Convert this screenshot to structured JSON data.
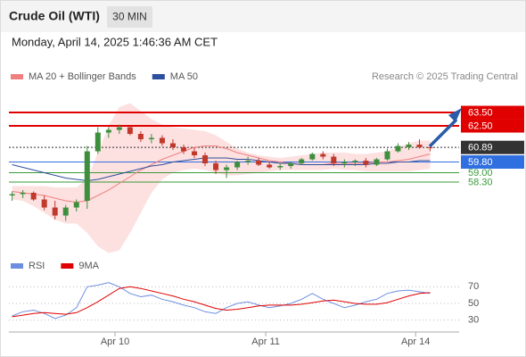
{
  "header": {
    "title": "Crude Oil (WTI)",
    "interval": "30 MIN",
    "datetime": "Monday, April 14, 2025 1:46:36 AM CET"
  },
  "chart_data": [
    {
      "type": "candlestick",
      "credit": "Research © 2025 Trading Central",
      "up_color": "#3d8f3d",
      "down_color": "#c0392b",
      "xlim": [
        -0.3,
        41.7
      ],
      "ylim": [
        52.9,
        65.57
      ],
      "open": [
        57.3,
        57.4,
        57.5,
        57.0,
        56.4,
        55.8,
        56.4,
        56.9,
        60.6,
        62.0,
        62.2,
        62.4,
        61.9,
        61.5,
        61.6,
        61.2,
        60.9,
        60.6,
        60.3,
        59.7,
        59.2,
        59.4,
        59.8,
        59.9,
        59.6,
        59.4,
        59.5,
        59.7,
        60.0,
        60.4,
        60.2,
        59.7,
        59.8,
        59.9,
        59.6,
        60.0,
        60.6,
        60.9,
        61.1,
        60.9
      ],
      "high": [
        57.6,
        57.7,
        57.6,
        57.3,
        56.9,
        56.6,
        57.0,
        61.0,
        62.4,
        62.4,
        62.6,
        62.5,
        62.1,
        61.9,
        61.8,
        61.5,
        61.1,
        60.9,
        60.5,
        59.9,
        59.6,
        59.9,
        60.2,
        60.1,
        59.8,
        59.7,
        59.8,
        60.1,
        60.5,
        60.6,
        60.4,
        60.0,
        60.0,
        60.1,
        60.1,
        60.8,
        61.2,
        61.3,
        61.5,
        61.0
      ],
      "low": [
        56.9,
        57.1,
        56.9,
        56.2,
        55.5,
        55.4,
        56.1,
        56.3,
        60.4,
        61.6,
        61.9,
        61.8,
        61.3,
        61.2,
        61.0,
        60.7,
        60.4,
        60.1,
        59.5,
        58.9,
        58.6,
        59.2,
        59.6,
        59.5,
        59.3,
        59.2,
        59.3,
        59.6,
        59.9,
        60.0,
        59.5,
        59.4,
        59.5,
        59.4,
        59.5,
        59.9,
        60.5,
        60.7,
        60.8,
        60.6
      ],
      "close": [
        57.4,
        57.5,
        57.0,
        56.4,
        55.8,
        56.4,
        56.8,
        60.6,
        62.0,
        62.2,
        62.4,
        61.9,
        61.5,
        61.6,
        61.2,
        60.9,
        60.6,
        60.3,
        59.7,
        59.2,
        59.4,
        59.8,
        59.9,
        59.6,
        59.4,
        59.5,
        59.7,
        60.0,
        60.4,
        60.2,
        59.7,
        59.8,
        59.9,
        59.6,
        60.0,
        60.6,
        61.0,
        61.1,
        60.9,
        60.89
      ],
      "band": {
        "color": "#fde0e0",
        "upper": [
          58.0,
          58.0,
          58.0,
          58.0,
          57.9,
          57.9,
          57.9,
          58.5,
          60.5,
          62.5,
          63.9,
          64.2,
          63.6,
          63.0,
          62.6,
          62.4,
          62.3,
          62.2,
          62.1,
          61.8,
          61.3,
          60.8,
          60.5,
          60.3,
          60.2,
          60.1,
          60.2,
          60.3,
          60.4,
          60.5,
          60.5,
          60.5,
          60.4,
          60.4,
          60.5,
          60.6,
          60.9,
          61.2,
          61.4,
          61.4
        ],
        "lower": [
          57.0,
          56.9,
          56.5,
          56.0,
          55.5,
          55.2,
          55.2,
          54.5,
          53.5,
          53.0,
          53.2,
          54.5,
          56.0,
          57.5,
          58.5,
          59.0,
          59.2,
          59.3,
          59.2,
          59.0,
          58.8,
          58.8,
          58.9,
          59.0,
          59.1,
          59.2,
          59.2,
          59.2,
          59.2,
          59.2,
          59.3,
          59.2,
          59.2,
          59.1,
          59.1,
          59.1,
          59.1,
          59.1,
          59.2,
          59.3
        ]
      },
      "series": [
        {
          "name": "MA 20 + Bollinger Bands",
          "color": "#f08080",
          "values": [
            57.6,
            57.5,
            57.4,
            57.3,
            57.1,
            56.9,
            56.8,
            56.9,
            57.3,
            57.7,
            58.2,
            58.7,
            59.2,
            59.6,
            60.0,
            60.3,
            60.6,
            60.9,
            61.0,
            61.0,
            60.8,
            60.5,
            60.3,
            60.1,
            59.9,
            59.8,
            59.7,
            59.6,
            59.6,
            59.6,
            59.7,
            59.7,
            59.7,
            59.7,
            59.8,
            59.8,
            59.9,
            60.0,
            60.2,
            60.4
          ]
        },
        {
          "name": "MA 50",
          "color": "#2c4f9e",
          "values": [
            59.6,
            59.4,
            59.2,
            59.0,
            58.8,
            58.6,
            58.5,
            58.4,
            58.5,
            58.7,
            58.9,
            59.1,
            59.3,
            59.5,
            59.6,
            59.8,
            59.9,
            60.0,
            60.1,
            60.1,
            60.1,
            60.0,
            60.0,
            59.9,
            59.8,
            59.7,
            59.7,
            59.6,
            59.6,
            59.6,
            59.6,
            59.6,
            59.6,
            59.6,
            59.7,
            59.7,
            59.8,
            59.8,
            59.9,
            59.9
          ]
        }
      ],
      "levels": [
        {
          "value": 63.5,
          "label": "63.50",
          "color": "#e00000",
          "line_style": "solid",
          "boxed": true
        },
        {
          "value": 62.5,
          "label": "62.50",
          "color": "#e00000",
          "line_style": "solid",
          "boxed": true
        },
        {
          "value": 60.89,
          "label": "60.89",
          "color": "#333333",
          "line_style": "dotted",
          "boxed": true
        },
        {
          "value": 59.8,
          "label": "59.80",
          "color": "#2f6fe0",
          "line_style": "solid",
          "boxed": true
        },
        {
          "value": 59.0,
          "label": "59.00",
          "color": "#3a9a3a",
          "line_style": "solid",
          "boxed": false
        },
        {
          "value": 58.3,
          "label": "58.30",
          "color": "#3a9a3a",
          "line_style": "solid",
          "boxed": false
        }
      ]
    },
    {
      "type": "line",
      "xlim": [
        -0.3,
        41.7
      ],
      "ylim": [
        20,
        80
      ],
      "yticks": [
        70,
        50,
        30
      ],
      "grid": true,
      "xticks": [
        {
          "value": 9.6,
          "label": "Apr 10"
        },
        {
          "value": 23.66,
          "label": "Apr 11"
        },
        {
          "value": 37.64,
          "label": "Apr 14"
        }
      ],
      "series": [
        {
          "name": "RSI",
          "color": "#6d8ee0",
          "values": [
            35,
            40,
            42,
            38,
            32,
            36,
            45,
            70,
            72,
            75,
            70,
            62,
            58,
            60,
            55,
            52,
            48,
            45,
            40,
            38,
            45,
            50,
            52,
            48,
            45,
            47,
            50,
            55,
            62,
            55,
            50,
            45,
            48,
            52,
            55,
            62,
            65,
            66,
            64,
            62
          ]
        },
        {
          "name": "9MA",
          "color": "#e00000",
          "values": [
            34,
            36,
            38,
            39,
            38,
            37,
            39,
            45,
            52,
            60,
            68,
            70,
            68,
            65,
            62,
            59,
            55,
            52,
            48,
            44,
            42,
            43,
            45,
            47,
            48,
            48,
            48,
            49,
            51,
            53,
            54,
            52,
            50,
            49,
            49,
            51,
            55,
            59,
            62,
            63
          ]
        }
      ]
    }
  ]
}
